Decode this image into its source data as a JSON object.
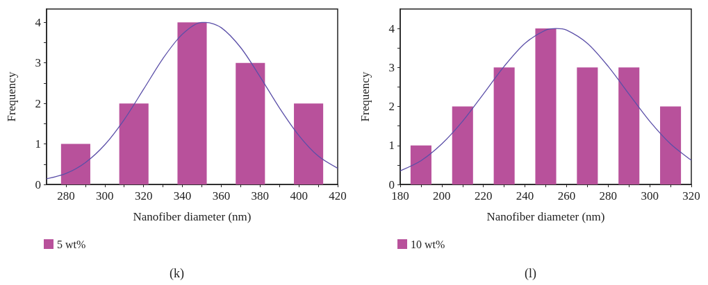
{
  "chart_data": [
    {
      "type": "bar",
      "xlabel": "Nanofiber diameter (nm)",
      "ylabel": "Frequency",
      "annotations": [
        "(k)"
      ],
      "legend": "bottom left",
      "grid": false,
      "xlim": [
        270,
        420
      ],
      "xticks": [
        280,
        {
          "value": 290,
          "label": null
        },
        300,
        {
          "value": 310,
          "label": null
        },
        320,
        {
          "value": 330,
          "label": null
        },
        340,
        {
          "value": 350,
          "label": null
        },
        360,
        {
          "value": 370,
          "label": null
        },
        380,
        {
          "value": 390,
          "label": null
        },
        400,
        {
          "value": 410,
          "label": null
        },
        420
      ],
      "ylim": [
        0,
        4.33
      ],
      "yticks": [
        0,
        {
          "value": 0.5,
          "label": null
        },
        1,
        {
          "value": 1.5,
          "label": null
        },
        2,
        {
          "value": 2.5,
          "label": null
        },
        3,
        {
          "value": 3.5,
          "label": null
        },
        4
      ],
      "series": [
        {
          "name": "5 wt%",
          "color": "#b8519b",
          "x": [
            285,
            315,
            345,
            375,
            405
          ],
          "values": [
            1,
            2,
            4,
            3,
            2
          ]
        },
        {
          "type": "line",
          "color": "#5b4fa8",
          "marker": "none",
          "x": [
            270,
            280,
            290,
            300,
            310,
            320,
            330,
            340,
            350,
            352,
            360,
            370,
            380,
            390,
            400,
            410,
            420
          ],
          "values": [
            0.14,
            0.27,
            0.54,
            0.98,
            1.6,
            2.35,
            3.11,
            3.71,
            4.0,
            4.0,
            3.87,
            3.38,
            2.66,
            1.89,
            1.21,
            0.7,
            0.4
          ]
        }
      ]
    },
    {
      "type": "bar",
      "xlabel": "Nanofiber diameter (nm)",
      "ylabel": "Frequency",
      "annotations": [
        "(l)"
      ],
      "legend": "bottom left",
      "grid": false,
      "xlim": [
        180,
        320
      ],
      "xticks": [
        180,
        {
          "value": 190,
          "label": null
        },
        200,
        {
          "value": 210,
          "label": null
        },
        220,
        {
          "value": 230,
          "label": null
        },
        240,
        {
          "value": 250,
          "label": null
        },
        260,
        {
          "value": 270,
          "label": null
        },
        280,
        {
          "value": 290,
          "label": null
        },
        300,
        {
          "value": 310,
          "label": null
        },
        320
      ],
      "ylim": [
        0,
        4.5
      ],
      "yticks": [
        0,
        {
          "value": 0.5,
          "label": null
        },
        1,
        {
          "value": 1.5,
          "label": null
        },
        2,
        {
          "value": 2.5,
          "label": null
        },
        3,
        {
          "value": 3.5,
          "label": null
        },
        4
      ],
      "series": [
        {
          "name": "10 wt%",
          "color": "#b8519b",
          "x": [
            190,
            210,
            230,
            250,
            270,
            290,
            310
          ],
          "values": [
            1,
            2,
            3,
            4,
            3,
            3,
            2
          ]
        },
        {
          "type": "line",
          "color": "#5b4fa8",
          "marker": "none",
          "x": [
            180,
            190,
            200,
            210,
            220,
            230,
            240,
            250,
            255,
            260,
            270,
            280,
            290,
            300,
            310,
            320
          ],
          "values": [
            0.35,
            0.61,
            1.04,
            1.62,
            2.32,
            3.03,
            3.62,
            3.96,
            4.0,
            3.96,
            3.62,
            3.03,
            2.32,
            1.62,
            1.04,
            0.62
          ]
        }
      ]
    }
  ]
}
